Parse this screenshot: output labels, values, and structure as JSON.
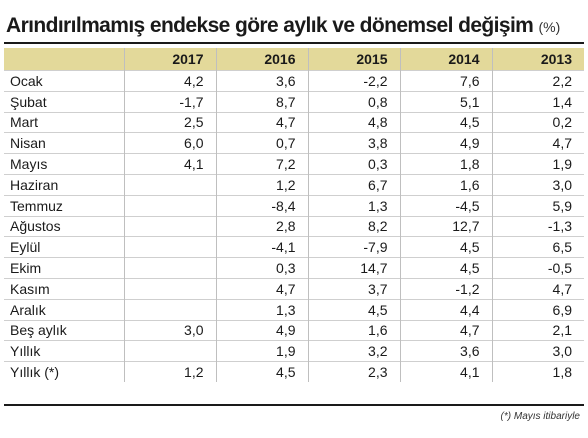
{
  "title": "Arındırılmamış endekse göre aylık ve dönemsel değişim",
  "unit": "(%)",
  "columns": [
    "2017",
    "2016",
    "2015",
    "2014",
    "2013"
  ],
  "rows": [
    {
      "label": "Ocak",
      "values": [
        "4,2",
        "3,6",
        "-2,2",
        "7,6",
        "2,2"
      ]
    },
    {
      "label": "Şubat",
      "values": [
        "-1,7",
        "8,7",
        "0,8",
        "5,1",
        "1,4"
      ]
    },
    {
      "label": "Mart",
      "values": [
        "2,5",
        "4,7",
        "4,8",
        "4,5",
        "0,2"
      ]
    },
    {
      "label": "Nisan",
      "values": [
        "6,0",
        "0,7",
        "3,8",
        "4,9",
        "4,7"
      ]
    },
    {
      "label": "Mayıs",
      "values": [
        "4,1",
        "7,2",
        "0,3",
        "1,8",
        "1,9"
      ]
    },
    {
      "label": "Haziran",
      "values": [
        "",
        "1,2",
        "6,7",
        "1,6",
        "3,0"
      ]
    },
    {
      "label": "Temmuz",
      "values": [
        "",
        "-8,4",
        "1,3",
        "-4,5",
        "5,9"
      ]
    },
    {
      "label": "Ağustos",
      "values": [
        "",
        "2,8",
        "8,2",
        "12,7",
        "-1,3"
      ]
    },
    {
      "label": "Eylül",
      "values": [
        "",
        "-4,1",
        "-7,9",
        "4,5",
        "6,5"
      ]
    },
    {
      "label": "Ekim",
      "values": [
        "",
        "0,3",
        "14,7",
        "4,5",
        "-0,5"
      ]
    },
    {
      "label": "Kasım",
      "values": [
        "",
        "4,7",
        "3,7",
        "-1,2",
        "4,7"
      ]
    },
    {
      "label": "Aralık",
      "values": [
        "",
        "1,3",
        "4,5",
        "4,4",
        "6,9"
      ]
    },
    {
      "label": "Beş aylık",
      "values": [
        "3,0",
        "4,9",
        "1,6",
        "4,7",
        "2,1"
      ]
    },
    {
      "label": "Yıllık",
      "values": [
        "",
        "1,9",
        "3,2",
        "3,6",
        "3,0"
      ]
    },
    {
      "label": "Yıllık (*)",
      "values": [
        "1,2",
        "4,5",
        "2,3",
        "4,1",
        "1,8"
      ]
    }
  ],
  "footnote": "(*) Mayıs itibariyle",
  "colors": {
    "header_bg": "#e3d99a",
    "text": "#1a1a1a"
  }
}
